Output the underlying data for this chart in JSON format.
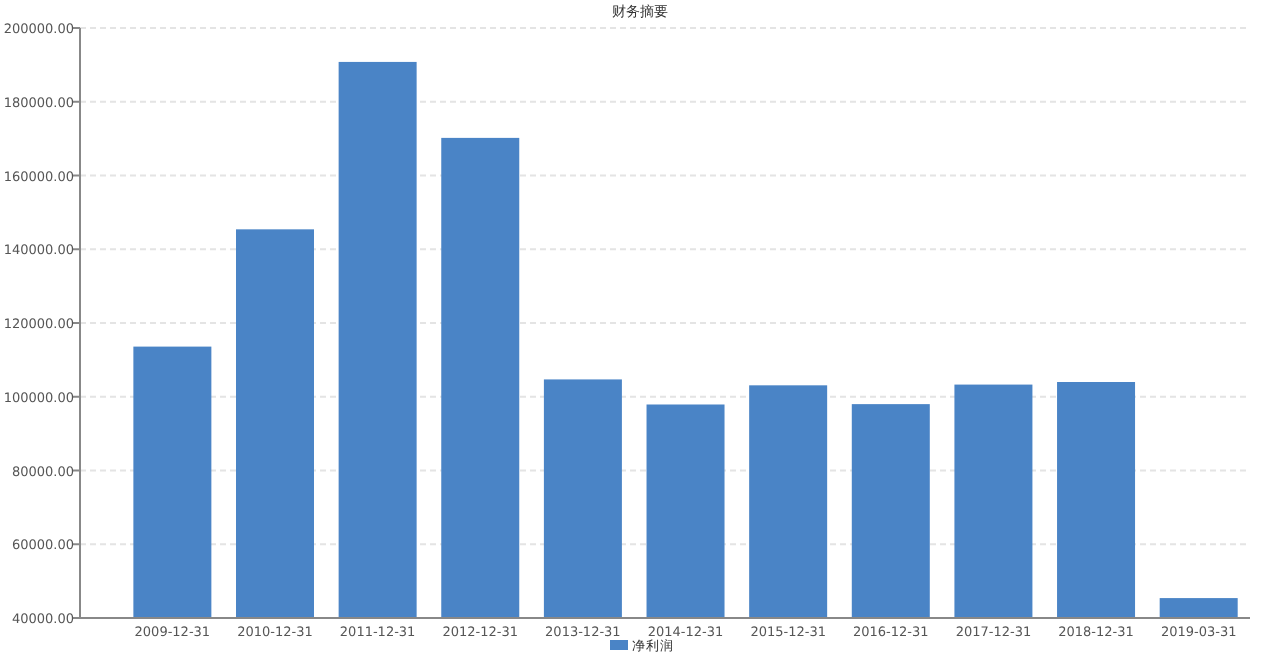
{
  "chart_data": {
    "type": "bar",
    "title": "财务摘要",
    "categories": [
      "2009-12-31",
      "2010-12-31",
      "2011-12-31",
      "2012-12-31",
      "2013-12-31",
      "2014-12-31",
      "2015-12-31",
      "2016-12-31",
      "2017-12-31",
      "2018-12-31",
      "2019-03-31"
    ],
    "series": [
      {
        "name": "净利润",
        "color": "#4a84c6",
        "values": [
          113600,
          145400,
          190800,
          170200,
          104700,
          97900,
          103100,
          98000,
          103300,
          104000,
          45400
        ]
      }
    ],
    "ylim": [
      40000,
      200000
    ],
    "yticks": [
      {
        "value": 40000,
        "label": "40000.00"
      },
      {
        "value": 60000,
        "label": "60000.00"
      },
      {
        "value": 80000,
        "label": "80000.00"
      },
      {
        "value": 100000,
        "label": "100000.00"
      },
      {
        "value": 120000,
        "label": "120000.00"
      },
      {
        "value": 140000,
        "label": "140000.00"
      },
      {
        "value": 160000,
        "label": "160000.00"
      },
      {
        "value": 180000,
        "label": "180000.00"
      },
      {
        "value": 200000,
        "label": "200000.00"
      }
    ],
    "grid": "y",
    "legend": "bottom"
  }
}
